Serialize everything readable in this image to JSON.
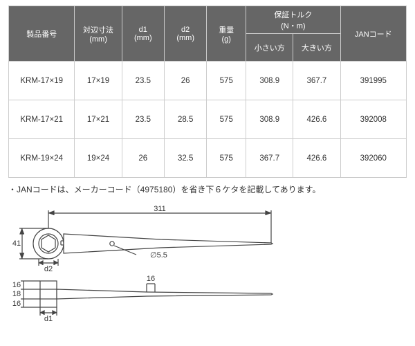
{
  "table": {
    "header_bg": "#666666",
    "header_color": "#ffffff",
    "border_color": "#cccccc",
    "cell_bg": "#ffffff",
    "cell_color": "#333333",
    "columns": [
      {
        "label": "製品番号",
        "width": 84
      },
      {
        "label": "対辺寸法\n(mm)",
        "width": 60
      },
      {
        "label": "d1\n(mm)",
        "width": 54
      },
      {
        "label": "d2\n(mm)",
        "width": 54
      },
      {
        "label": "重量\n(g)",
        "width": 50
      },
      {
        "label_group": "保証トルク\n(N・m)",
        "sub": [
          {
            "label": "小さい方",
            "width": 60
          },
          {
            "label": "大きい方",
            "width": 60
          }
        ]
      },
      {
        "label": "JANコード",
        "width": 84
      }
    ],
    "rows": [
      [
        "KRM-17×19",
        "17×19",
        "23.5",
        "26",
        "575",
        "308.9",
        "367.7",
        "391995"
      ],
      [
        "KRM-17×21",
        "17×21",
        "23.5",
        "28.5",
        "575",
        "308.9",
        "426.6",
        "392008"
      ],
      [
        "KRM-19×24",
        "19×24",
        "26",
        "32.5",
        "575",
        "367.7",
        "426.6",
        "392060"
      ]
    ]
  },
  "note": "・JANコードは、メーカーコード（4975180）を省き下６ケタを記載してあります。",
  "diagram": {
    "stroke": "#444444",
    "fill": "#ffffff",
    "text_color": "#333333",
    "font_size": 11,
    "length_overall": "311",
    "head_height": "41",
    "hole_dia": "∅5.5",
    "d2_label": "d2",
    "side_top": "16",
    "side_mid": "18",
    "side_bot": "16",
    "side_right_gap": "16",
    "d1_label": "d1"
  }
}
